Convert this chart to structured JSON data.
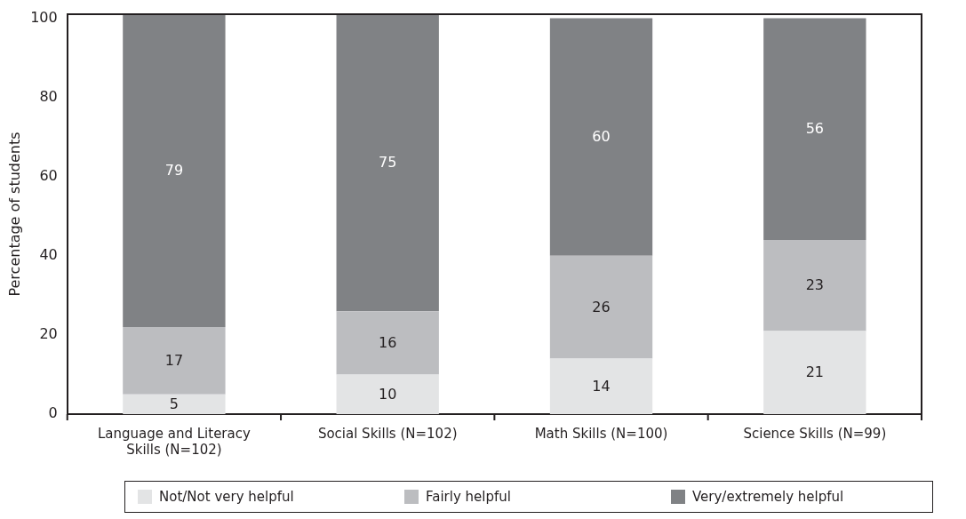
{
  "chart_data": {
    "type": "bar",
    "stacked": true,
    "ylabel": "Percentage of students",
    "categories": [
      "Language and Literacy Skills (N=102)",
      "Social Skills (N=102)",
      "Math Skills (N=100)",
      "Science Skills (N=99)"
    ],
    "series": [
      {
        "name": "Not/Not very helpful",
        "color": "#e3e4e5",
        "values": [
          5,
          10,
          14,
          21
        ]
      },
      {
        "name": "Fairly helpful",
        "color": "#bcbdc0",
        "values": [
          17,
          16,
          26,
          23
        ]
      },
      {
        "name": "Very/extremely helpful",
        "color": "#808285",
        "values": [
          79,
          75,
          60,
          56
        ]
      }
    ],
    "ylim": [
      0,
      101
    ],
    "yticks": [
      0,
      20,
      40,
      60,
      80,
      100
    ],
    "grid": false,
    "legend": "bottom",
    "data_labels": true
  }
}
